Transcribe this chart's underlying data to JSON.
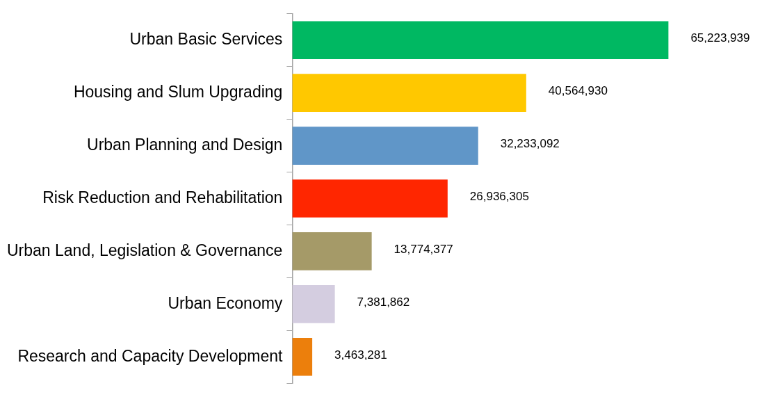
{
  "chart_data": {
    "type": "bar",
    "orientation": "horizontal",
    "categories": [
      "Urban Basic Services",
      "Housing and Slum Upgrading",
      "Urban Planning and Design",
      "Risk Reduction and Rehabilitation",
      "Urban Land, Legislation & Governance",
      "Urban Economy",
      "Research and Capacity Development"
    ],
    "values": [
      65223939,
      40564930,
      32233092,
      26936305,
      13774377,
      7381862,
      3463281
    ],
    "colors": [
      "#00b862",
      "#ffc800",
      "#6096c8",
      "#ff2600",
      "#a59a68",
      "#d4cde0",
      "#ec7f0c"
    ],
    "value_labels": [
      "65,223,939",
      "40,564,930",
      "32,233,092",
      "26,936,305",
      "13,774,377",
      "7,381,862",
      "3,463,281"
    ],
    "grid": false,
    "legend": false
  }
}
